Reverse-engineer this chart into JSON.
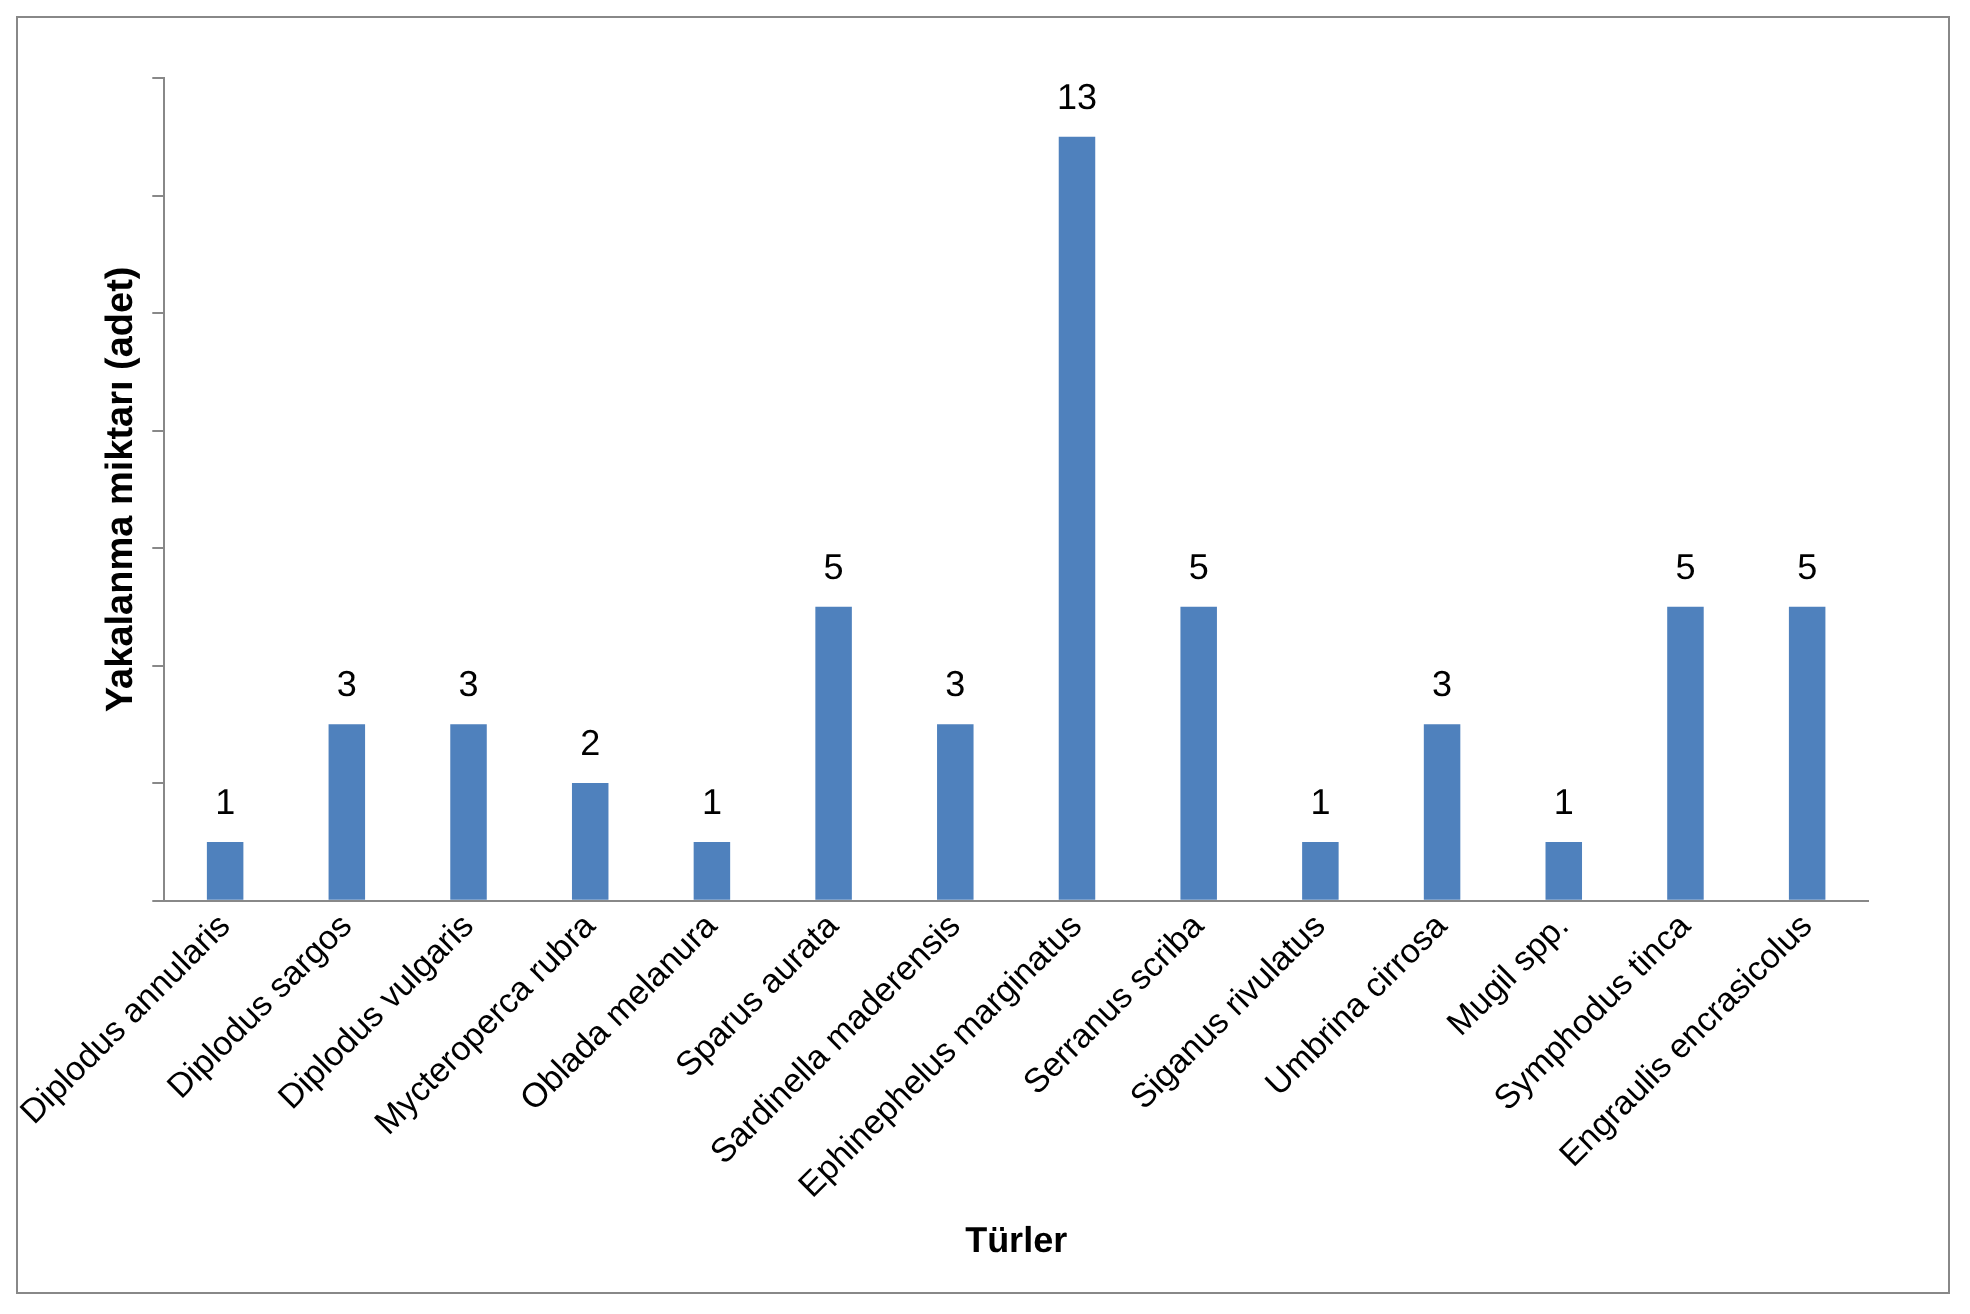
{
  "chart_data": {
    "type": "bar",
    "xlabel": "Türler",
    "ylabel": "Yakalanma miktarı (adet)",
    "categories": [
      "Diplodus annularis",
      "Diplodus sargos",
      "Diplodus vulgaris",
      "Mycteroperca rubra",
      "Oblada melanura",
      "Sparus aurata",
      "Sardinella maderensis",
      "Ephinephelus marginatus",
      "Serranus scriba",
      "Siganus rivulatus",
      "Umbrina cirrosa",
      "Mugil spp.",
      "Symphodus tinca",
      "Engraulis encrasicolus"
    ],
    "values": [
      1,
      3,
      3,
      2,
      1,
      5,
      3,
      13,
      5,
      1,
      3,
      1,
      5,
      5
    ],
    "color": "#4f81bd",
    "ylim": [
      0,
      14
    ],
    "yticks": [
      {
        "value": 0,
        "label": null
      },
      {
        "value": 2,
        "label": null
      },
      {
        "value": 4,
        "label": null
      },
      {
        "value": 6,
        "label": null
      },
      {
        "value": 8,
        "label": null
      },
      {
        "value": 10,
        "label": null
      },
      {
        "value": 12,
        "label": null
      },
      {
        "value": 14,
        "label": null
      }
    ],
    "tick_labels": "x",
    "grid": false,
    "legend": false,
    "data_labels": true
  }
}
